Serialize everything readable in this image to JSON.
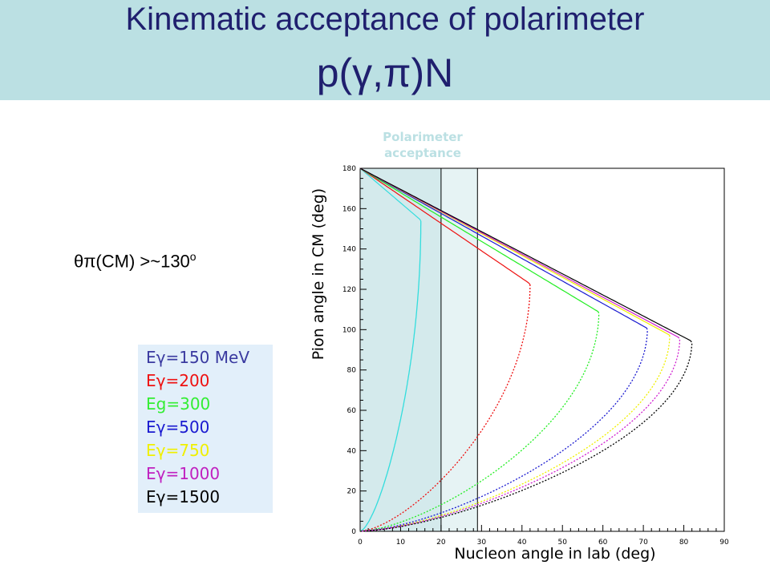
{
  "header": {
    "title_line1": "Kinematic acceptance of polarimeter",
    "title_line2": "p(γ,π)N",
    "band_color": "#bbe0e3",
    "text_color": "#1f1f6e"
  },
  "note": {
    "text": "θπ(CM) >~130",
    "superscript": "o"
  },
  "legend": {
    "entries": [
      {
        "label": "Eγ=150 MeV",
        "color": "#3a3aa0"
      },
      {
        "label": "Eγ=200",
        "color": "#ee1111"
      },
      {
        "label": "Eg=300",
        "color": "#33ee33"
      },
      {
        "label": "Eγ=500",
        "color": "#1a1ad0"
      },
      {
        "label": "Eγ=750",
        "color": "#f0f000"
      },
      {
        "label": "Eγ=1000",
        "color": "#c020c0"
      },
      {
        "label": "Eγ=1500",
        "color": "#000000"
      }
    ]
  },
  "chart_data": {
    "type": "scatter",
    "xlabel": "Nucleon angle in lab (deg)",
    "ylabel": "Pion angle in CM (deg)",
    "xlim": [
      0,
      90
    ],
    "ylim": [
      0,
      180
    ],
    "x_ticks": [
      0,
      10,
      20,
      30,
      40,
      50,
      60,
      70,
      80,
      90
    ],
    "y_ticks": [
      0,
      20,
      40,
      60,
      80,
      100,
      120,
      140,
      160,
      180
    ],
    "acceptance_label": [
      "Polarimeter",
      "acceptance"
    ],
    "acceptance_regions": [
      [
        0,
        20
      ],
      [
        0,
        29
      ]
    ],
    "series": [
      {
        "name": "Eγ=150 MeV",
        "color": "#33dddd",
        "theta_max": 15.0
      },
      {
        "name": "Eγ=200",
        "color": "#ee1111",
        "theta_max": 42.0
      },
      {
        "name": "Eg=300",
        "color": "#22ee22",
        "theta_max": 59.0
      },
      {
        "name": "Eγ=500",
        "color": "#1a1ad0",
        "theta_max": 71.0
      },
      {
        "name": "Eγ=750",
        "color": "#f0f000",
        "theta_max": 76.5
      },
      {
        "name": "Eγ=1000",
        "color": "#d020d0",
        "theta_max": 79.0
      },
      {
        "name": "Eγ=1500",
        "color": "#000000",
        "theta_max": 82.0
      }
    ]
  }
}
